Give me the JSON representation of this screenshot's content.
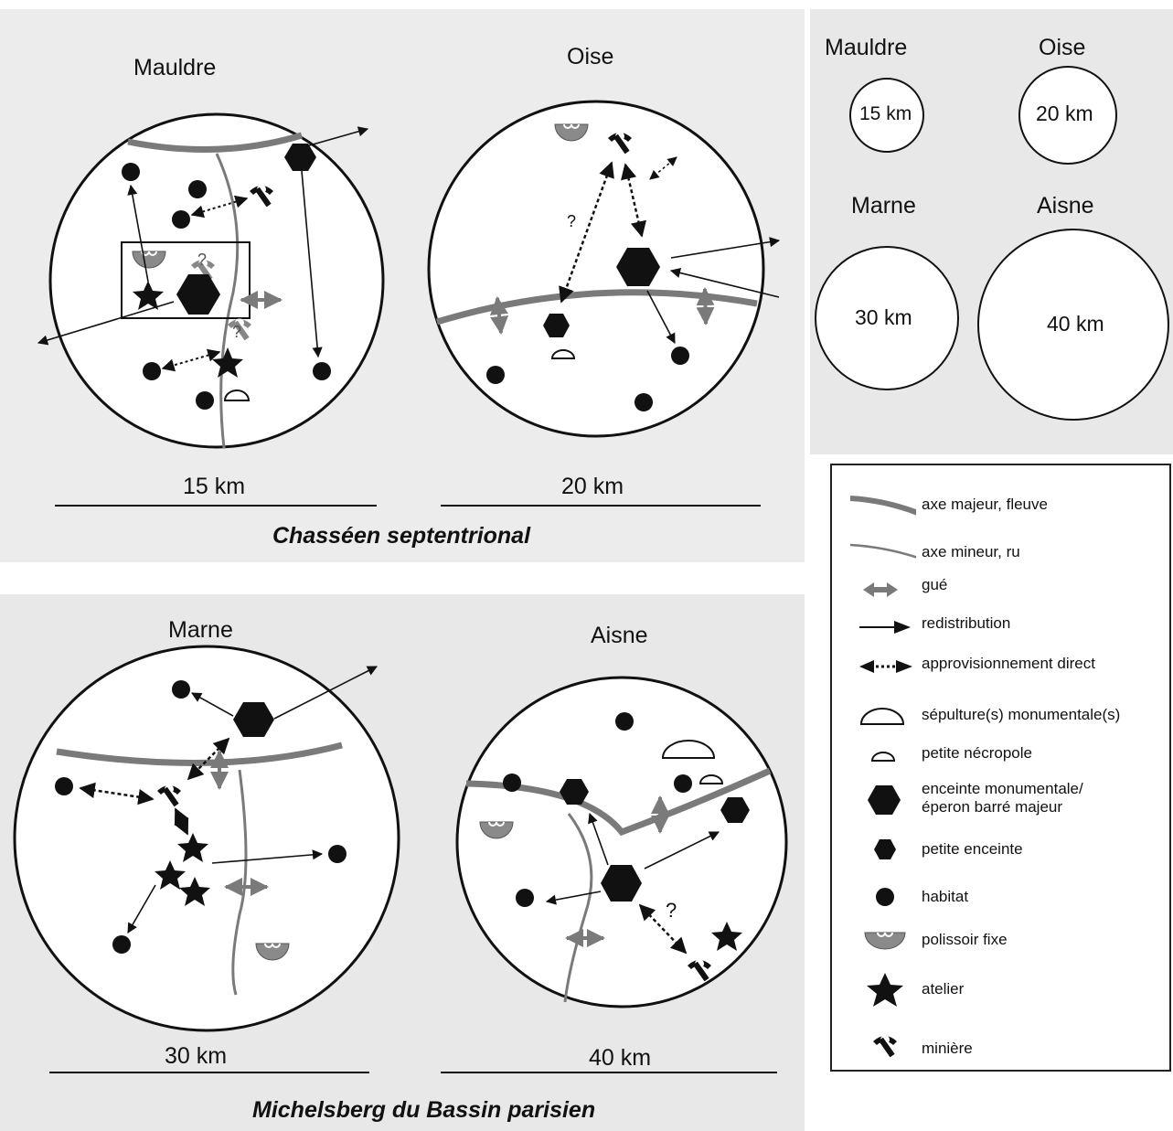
{
  "groups": {
    "top": "Chasséen septentrional",
    "bottom": "Michelsberg du Bassin parisien"
  },
  "regions": {
    "mauldre": {
      "name": "Mauldre",
      "scale": "15 km"
    },
    "oise": {
      "name": "Oise",
      "scale": "20 km"
    },
    "marne": {
      "name": "Marne",
      "scale": "30 km"
    },
    "aisne": {
      "name": "Aisne",
      "scale": "40 km"
    }
  },
  "question_mark": "?",
  "comparison": [
    {
      "name": "Mauldre",
      "size": "15 km"
    },
    {
      "name": "Oise",
      "size": "20 km"
    },
    {
      "name": "Marne",
      "size": "30 km"
    },
    {
      "name": "Aisne",
      "size": "40 km"
    }
  ],
  "legend": [
    {
      "symbol": "river-major-icon",
      "label": "axe majeur, fleuve"
    },
    {
      "symbol": "river-minor-icon",
      "label": "axe mineur, ru"
    },
    {
      "symbol": "ford-icon",
      "label": "gué"
    },
    {
      "symbol": "arrow-icon",
      "label": "redistribution"
    },
    {
      "symbol": "dashed-double-arrow-icon",
      "label": "approvisionnement direct"
    },
    {
      "symbol": "large-dome-icon",
      "label": "sépulture(s) monumentale(s)"
    },
    {
      "symbol": "small-dome-icon",
      "label": "petite nécropole"
    },
    {
      "symbol": "large-hexagon-icon",
      "label": "enceinte monumentale/ éperon barré majeur"
    },
    {
      "symbol": "small-hexagon-icon",
      "label": "petite enceinte"
    },
    {
      "symbol": "dot-icon",
      "label": "habitat"
    },
    {
      "symbol": "polisher-icon",
      "label": "polissoir fixe"
    },
    {
      "symbol": "star-icon",
      "label": "atelier"
    },
    {
      "symbol": "pickaxe-icon",
      "label": "minière"
    }
  ],
  "colors": {
    "river": "#7a7a7a",
    "symbol": "#111111",
    "panel_bg": "#e9e9e9",
    "polisher": "#8a8a8a"
  }
}
